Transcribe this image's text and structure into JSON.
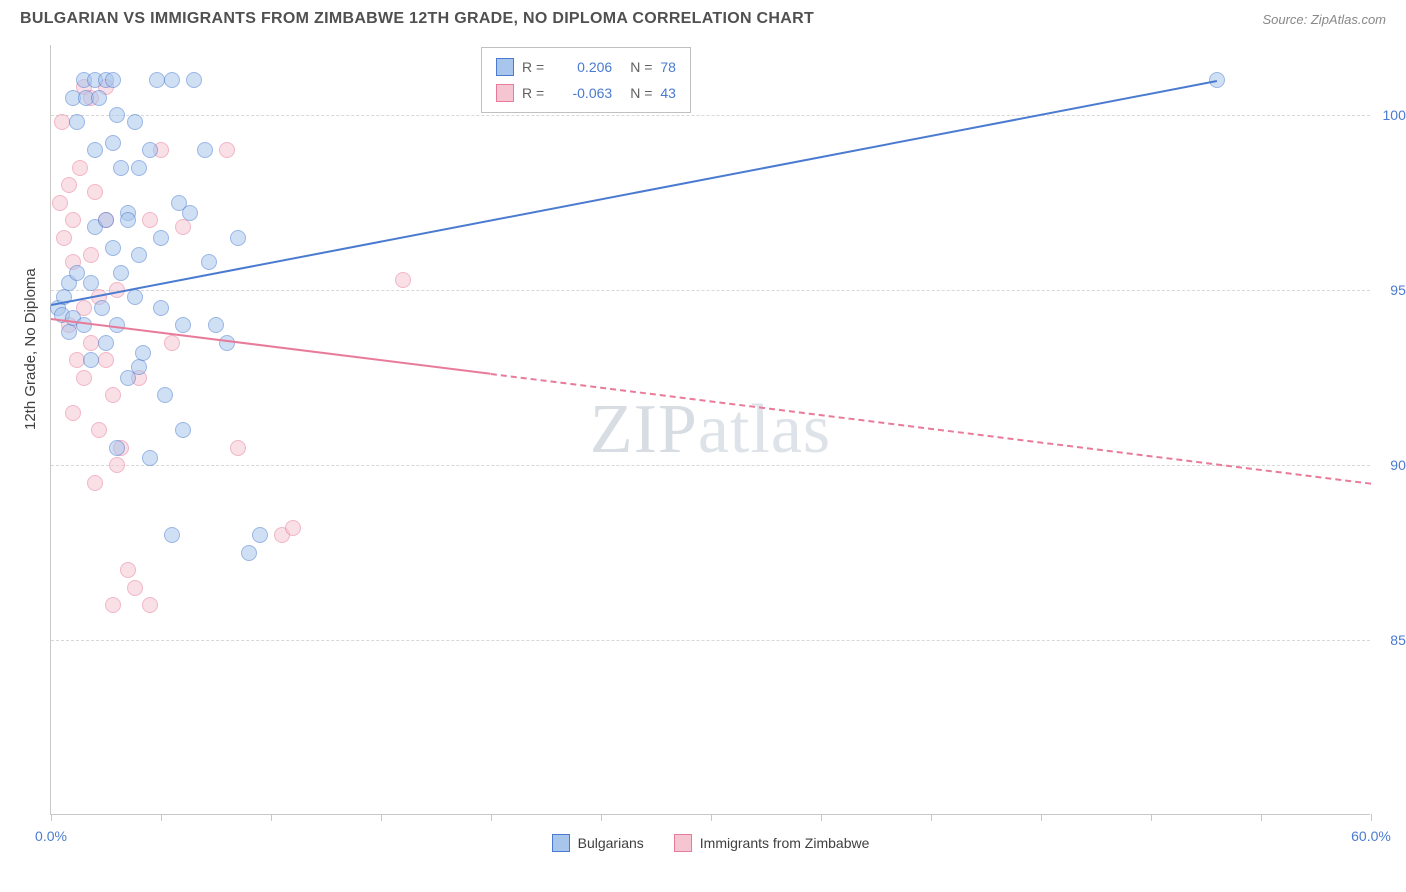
{
  "header": {
    "title": "BULGARIAN VS IMMIGRANTS FROM ZIMBABWE 12TH GRADE, NO DIPLOMA CORRELATION CHART",
    "source": "Source: ZipAtlas.com"
  },
  "watermark": {
    "part1": "ZIP",
    "part2": "atlas"
  },
  "chart": {
    "type": "scatter",
    "ylabel": "12th Grade, No Diploma",
    "xlim": [
      0,
      60
    ],
    "ylim": [
      80,
      102
    ],
    "xticks": [
      0,
      5,
      10,
      15,
      20,
      25,
      30,
      35,
      40,
      45,
      50,
      55,
      60
    ],
    "xtick_labels": {
      "0": "0.0%",
      "60": "60.0%"
    },
    "yticks": [
      85,
      90,
      95,
      100
    ],
    "ytick_labels": {
      "85": "85.0%",
      "90": "90.0%",
      "95": "95.0%",
      "100": "100.0%"
    },
    "grid_color": "#d8d8d8",
    "axis_color": "#c8c8c8",
    "background_color": "#ffffff",
    "tick_label_color": "#4a7bd0",
    "tick_label_fontsize": 14,
    "ylabel_color": "#404040",
    "ylabel_fontsize": 15,
    "point_radius": 8,
    "point_opacity": 0.55
  },
  "series": {
    "bulgarians": {
      "label": "Bulgarians",
      "R": "0.206",
      "N": "78",
      "color_stroke": "#4a7bd0",
      "color_fill": "#a8c5ec",
      "trend": {
        "x1": 0,
        "y1": 94.6,
        "x2": 53,
        "y2": 101.0,
        "solid_until_x": 53,
        "line_width": 2.5
      },
      "points": [
        [
          0.3,
          94.5
        ],
        [
          0.5,
          94.3
        ],
        [
          0.6,
          94.8
        ],
        [
          0.8,
          93.8
        ],
        [
          0.8,
          95.2
        ],
        [
          1.0,
          94.2
        ],
        [
          1.0,
          100.5
        ],
        [
          1.2,
          99.8
        ],
        [
          1.2,
          95.5
        ],
        [
          1.5,
          94.0
        ],
        [
          1.5,
          101.0
        ],
        [
          1.6,
          100.5
        ],
        [
          1.8,
          95.2
        ],
        [
          1.8,
          93.0
        ],
        [
          2.0,
          101.0
        ],
        [
          2.0,
          96.8
        ],
        [
          2.0,
          99.0
        ],
        [
          2.2,
          100.5
        ],
        [
          2.3,
          94.5
        ],
        [
          2.5,
          101.0
        ],
        [
          2.5,
          97.0
        ],
        [
          2.5,
          93.5
        ],
        [
          2.8,
          101.0
        ],
        [
          2.8,
          99.2
        ],
        [
          2.8,
          96.2
        ],
        [
          3.0,
          100.0
        ],
        [
          3.0,
          94.0
        ],
        [
          3.0,
          90.5
        ],
        [
          3.2,
          95.5
        ],
        [
          3.2,
          98.5
        ],
        [
          3.5,
          97.2
        ],
        [
          3.5,
          97.0
        ],
        [
          3.5,
          92.5
        ],
        [
          3.8,
          94.8
        ],
        [
          3.8,
          99.8
        ],
        [
          4.0,
          98.5
        ],
        [
          4.0,
          96.0
        ],
        [
          4.0,
          92.8
        ],
        [
          4.2,
          93.2
        ],
        [
          4.5,
          90.2
        ],
        [
          4.5,
          99.0
        ],
        [
          4.8,
          101.0
        ],
        [
          5.0,
          94.5
        ],
        [
          5.0,
          96.5
        ],
        [
          5.2,
          92.0
        ],
        [
          5.5,
          101.0
        ],
        [
          5.5,
          88.0
        ],
        [
          5.8,
          97.5
        ],
        [
          6.0,
          94.0
        ],
        [
          6.0,
          91.0
        ],
        [
          6.3,
          97.2
        ],
        [
          6.5,
          101.0
        ],
        [
          7.0,
          99.0
        ],
        [
          7.2,
          95.8
        ],
        [
          7.5,
          94.0
        ],
        [
          8.0,
          93.5
        ],
        [
          8.5,
          96.5
        ],
        [
          9.0,
          87.5
        ],
        [
          9.5,
          88.0
        ],
        [
          53.0,
          101.0
        ]
      ]
    },
    "zimbabwe": {
      "label": "Immigrants from Zimbabwe",
      "R": "-0.063",
      "N": "43",
      "color_stroke": "#e87b9a",
      "color_fill": "#f5c5d2",
      "trend": {
        "x1": 0,
        "y1": 94.2,
        "x2": 60,
        "y2": 89.5,
        "solid_until_x": 20,
        "line_width": 2
      },
      "points": [
        [
          0.4,
          97.5
        ],
        [
          0.5,
          99.8
        ],
        [
          0.6,
          96.5
        ],
        [
          0.8,
          98.0
        ],
        [
          0.8,
          94.0
        ],
        [
          1.0,
          95.8
        ],
        [
          1.0,
          97.0
        ],
        [
          1.0,
          91.5
        ],
        [
          1.2,
          93.0
        ],
        [
          1.3,
          98.5
        ],
        [
          1.5,
          100.8
        ],
        [
          1.5,
          94.5
        ],
        [
          1.5,
          92.5
        ],
        [
          1.8,
          100.5
        ],
        [
          1.8,
          96.0
        ],
        [
          1.8,
          93.5
        ],
        [
          2.0,
          97.8
        ],
        [
          2.0,
          89.5
        ],
        [
          2.2,
          94.8
        ],
        [
          2.2,
          91.0
        ],
        [
          2.5,
          100.8
        ],
        [
          2.5,
          97.0
        ],
        [
          2.5,
          93.0
        ],
        [
          2.8,
          92.0
        ],
        [
          2.8,
          86.0
        ],
        [
          3.0,
          95.0
        ],
        [
          3.0,
          90.0
        ],
        [
          3.2,
          90.5
        ],
        [
          3.5,
          87.0
        ],
        [
          3.8,
          86.5
        ],
        [
          4.0,
          92.5
        ],
        [
          4.5,
          97.0
        ],
        [
          4.5,
          86.0
        ],
        [
          5.0,
          99.0
        ],
        [
          5.5,
          93.5
        ],
        [
          6.0,
          96.8
        ],
        [
          8.0,
          99.0
        ],
        [
          8.5,
          90.5
        ],
        [
          10.5,
          88.0
        ],
        [
          11.0,
          88.2
        ],
        [
          16.0,
          95.3
        ]
      ]
    }
  },
  "legend_top": {
    "R_label": "R =",
    "N_label": "N ="
  },
  "legend_bottom": {}
}
